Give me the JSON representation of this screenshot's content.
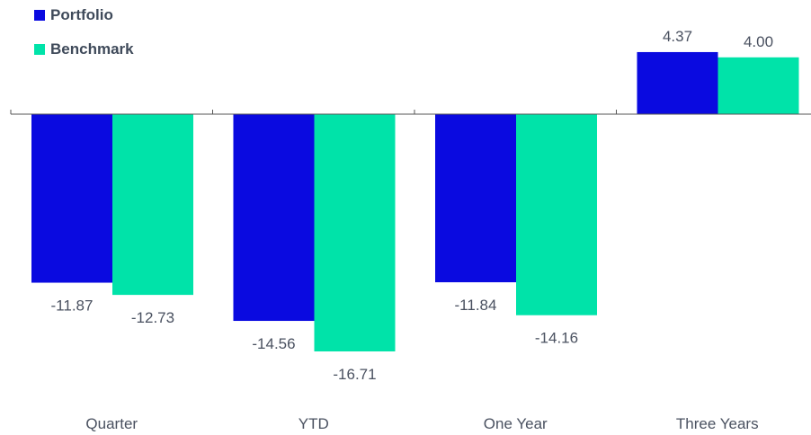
{
  "chart_data": {
    "type": "bar",
    "categories": [
      "Quarter",
      "YTD",
      "One Year",
      "Three Years"
    ],
    "series": [
      {
        "name": "Portfolio",
        "values": [
          -11.87,
          -14.56,
          -11.84,
          4.37
        ],
        "labels": [
          "-11.87",
          "-14.56",
          "-11.84",
          "4.37"
        ]
      },
      {
        "name": "Benchmark",
        "values": [
          -12.73,
          -16.71,
          -14.16,
          4.0
        ],
        "labels": [
          "-12.73",
          "-16.71",
          "-14.16",
          "4.00"
        ]
      }
    ],
    "ylim": [
      -16.71,
      4.37
    ],
    "legend_position": "top-left",
    "grid": false,
    "colors": {
      "Portfolio": "#0a0ae0",
      "Benchmark": "#00e3a9",
      "axis": "#555555",
      "text": "#4a5160"
    }
  }
}
